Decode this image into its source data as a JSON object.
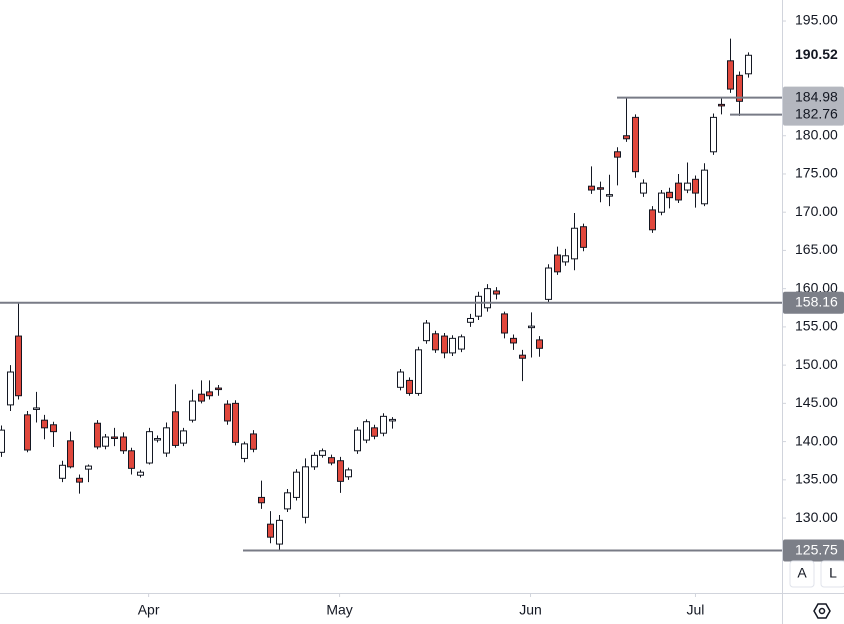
{
  "chart_data": {
    "type": "candlestick",
    "series": [
      {
        "name": "Price",
        "up_color": "#ffffff",
        "down_color": "#e0473c",
        "open": [
          138.6,
          144.8,
          153.8,
          143.5,
          144.3,
          142.8,
          142.2,
          135.2,
          140.1,
          135.2,
          136.4,
          142.4,
          139.4,
          140.6,
          140.6,
          138.8,
          135.6,
          137.2,
          140.3,
          138.5,
          143.9,
          139.8,
          142.8,
          146.2,
          146.5,
          147.0,
          144.9,
          145.0,
          137.8,
          141.0,
          132.7,
          129.2,
          126.6,
          131.2,
          132.7,
          130.1,
          136.7,
          138.2,
          137.9,
          137.5,
          135.4,
          138.8,
          140.2,
          141.8,
          141.1,
          142.8,
          147.1,
          148.0,
          146.3,
          153.2,
          154.1,
          153.8,
          151.6,
          152.1,
          155.6,
          156.4,
          157.5,
          159.7,
          156.7,
          153.5,
          151.3,
          155.0,
          153.3,
          158.6,
          164.4,
          163.5,
          163.9,
          168.1,
          173.4,
          173.2,
          172.2,
          177.9,
          180.0,
          182.4,
          172.5,
          170.3,
          170.0,
          172.6,
          173.8,
          172.9,
          174.3,
          171.1,
          177.9,
          184.1,
          189.8,
          187.9,
          188.1
        ],
        "high": [
          142.1,
          150.0,
          158.1,
          144.0,
          146.5,
          143.5,
          142.6,
          137.5,
          141.3,
          135.7,
          137.0,
          142.8,
          141.0,
          141.8,
          141.2,
          139.2,
          136.3,
          141.8,
          140.8,
          142.5,
          147.5,
          141.8,
          146.8,
          148.0,
          148.0,
          147.4,
          145.4,
          145.4,
          140.0,
          141.5,
          134.9,
          130.9,
          130.4,
          133.8,
          136.4,
          137.8,
          138.6,
          139.1,
          138.3,
          138.0,
          136.6,
          141.9,
          142.9,
          142.2,
          143.7,
          143.2,
          149.5,
          148.4,
          152.4,
          155.9,
          154.5,
          154.2,
          153.9,
          154.0,
          156.7,
          159.6,
          160.6,
          160.2,
          157.0,
          154.0,
          152.0,
          156.9,
          153.8,
          163.2,
          165.5,
          165.2,
          169.9,
          168.5,
          176.0,
          174.0,
          174.9,
          178.5,
          185.0,
          182.8,
          174.3,
          170.8,
          172.9,
          173.2,
          175.0,
          176.5,
          174.8,
          176.4,
          182.9,
          185.0,
          192.7,
          188.4,
          190.9
        ],
        "low": [
          138.0,
          144.0,
          145.5,
          138.6,
          142.5,
          140.3,
          139.3,
          134.7,
          136.5,
          133.2,
          134.7,
          139.0,
          139.0,
          139.4,
          138.4,
          135.7,
          135.3,
          137.0,
          139.9,
          138.0,
          139.2,
          139.4,
          142.5,
          145.0,
          145.5,
          146.0,
          142.2,
          139.5,
          137.3,
          138.6,
          131.2,
          126.7,
          125.8,
          130.8,
          132.3,
          129.3,
          136.3,
          137.9,
          136.9,
          133.3,
          135.0,
          138.4,
          139.8,
          140.3,
          140.7,
          141.7,
          146.7,
          146.0,
          146.0,
          152.8,
          151.6,
          150.9,
          151.2,
          151.7,
          155.0,
          155.9,
          157.0,
          158.6,
          153.5,
          152.0,
          147.9,
          151.0,
          151.1,
          158.2,
          161.8,
          163.0,
          162.4,
          164.9,
          172.4,
          171.3,
          170.8,
          173.5,
          179.2,
          174.5,
          172.0,
          167.3,
          169.6,
          170.5,
          171.2,
          172.5,
          170.6,
          170.8,
          177.5,
          182.8,
          185.6,
          182.6,
          187.6
        ],
        "close": [
          141.5,
          149.1,
          146.0,
          138.9,
          144.4,
          141.8,
          141.3,
          136.9,
          136.7,
          134.7,
          136.8,
          139.3,
          140.6,
          140.5,
          138.8,
          136.5,
          136.0,
          141.3,
          140.4,
          141.8,
          139.5,
          141.4,
          145.3,
          145.3,
          146.0,
          146.9,
          142.7,
          139.9,
          139.7,
          139.0,
          132.0,
          127.5,
          129.7,
          133.3,
          136.0,
          136.7,
          138.2,
          138.8,
          137.2,
          134.8,
          136.3,
          141.5,
          142.6,
          140.7,
          143.3,
          142.9,
          149.1,
          146.3,
          152.0,
          155.5,
          152.0,
          151.6,
          153.5,
          153.7,
          156.1,
          159.0,
          160.0,
          159.3,
          154.2,
          152.9,
          150.9,
          155.1,
          152.2,
          162.7,
          162.2,
          164.3,
          167.9,
          165.4,
          172.9,
          173.1,
          172.3,
          177.2,
          179.6,
          175.3,
          173.8,
          167.7,
          172.5,
          171.9,
          171.6,
          173.8,
          172.5,
          175.5,
          182.4,
          183.9,
          186.1,
          184.5,
          190.52
        ]
      }
    ],
    "xlim": [
      -0.12,
      89.97
    ],
    "xticks": [
      {
        "value": 17,
        "label": "Apr"
      },
      {
        "value": 39,
        "label": "May"
      },
      {
        "value": 61,
        "label": "Jun"
      },
      {
        "value": 80,
        "label": "Jul"
      }
    ],
    "ylim": [
      120.2,
      197.75
    ],
    "yticks": [
      {
        "value": 130,
        "label": "130.00"
      },
      {
        "value": 135,
        "label": "135.00"
      },
      {
        "value": 140,
        "label": "140.00"
      },
      {
        "value": 145,
        "label": "145.00"
      },
      {
        "value": 150,
        "label": "150.00"
      },
      {
        "value": 155,
        "label": "155.00"
      },
      {
        "value": 160,
        "label": "160.00"
      },
      {
        "value": 165,
        "label": "165.00"
      },
      {
        "value": 170,
        "label": "170.00"
      },
      {
        "value": 175,
        "label": "175.00"
      },
      {
        "value": 180,
        "label": "180.00"
      },
      {
        "value": 195,
        "label": "195.00"
      }
    ],
    "price_lines": [
      184.98,
      182.76,
      158.16,
      125.75
    ],
    "grid": false,
    "buttons": [
      "A",
      "L"
    ]
  }
}
